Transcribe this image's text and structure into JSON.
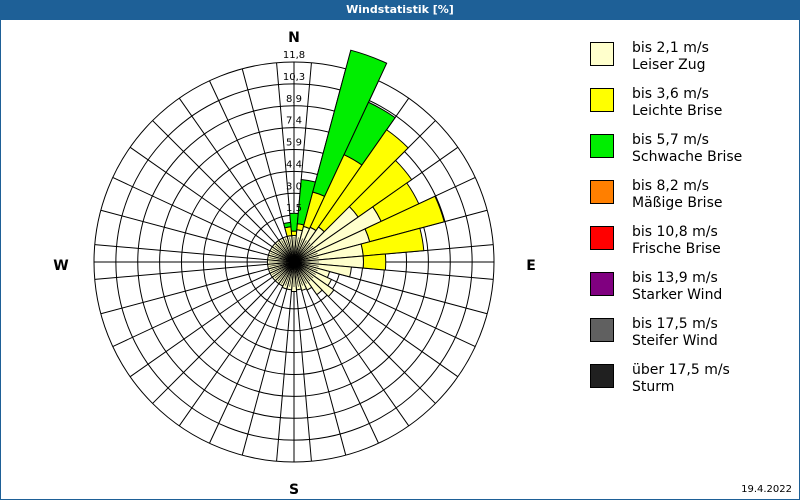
{
  "window": {
    "title": "Windstatistik [%]"
  },
  "footer": {
    "date": "19.4.2022"
  },
  "compass": {
    "n": "N",
    "e": "E",
    "s": "S",
    "w": "W"
  },
  "legend": [
    {
      "speed": "bis 2,1 m/s",
      "name": "Leiser Zug",
      "color": "#ffffcc"
    },
    {
      "speed": "bis 3,6 m/s",
      "name": "Leichte Brise",
      "color": "#ffff00"
    },
    {
      "speed": "bis 5,7 m/s",
      "name": "Schwache Brise",
      "color": "#00ee00"
    },
    {
      "speed": "bis 8,2 m/s",
      "name": "Mäßige Brise",
      "color": "#ff7f00"
    },
    {
      "speed": "bis 10,8 m/s",
      "name": "Frische Brise",
      "color": "#ff0000"
    },
    {
      "speed": "bis 13,9 m/s",
      "name": "Starker Wind",
      "color": "#800080"
    },
    {
      "speed": "bis 17,5 m/s",
      "name": "Steifer Wind",
      "color": "#606060"
    },
    {
      "speed": "über 17,5 m/s",
      "name": "Sturm",
      "color": "#202020"
    }
  ],
  "chart_data": {
    "type": "polar-stacked-bar (wind rose)",
    "title": "Windstatistik [%]",
    "unit": "%",
    "ring_labels": [
      "1,5",
      "3,0",
      "4,4",
      "5,9",
      "7,4",
      "8,9",
      "10,3",
      "11,8"
    ],
    "rmax": 11.8,
    "sector_width_deg": 10,
    "directions_deg": [
      0,
      10,
      20,
      30,
      40,
      50,
      60,
      70,
      80,
      90,
      100,
      110,
      120,
      130,
      140,
      150,
      160,
      170,
      180,
      190,
      200,
      210,
      220,
      230,
      240,
      250,
      260,
      270,
      280,
      290,
      300,
      310,
      320,
      330,
      340,
      350
    ],
    "series": [
      {
        "name": "bis 2,1 m/s Leiser Zug",
        "values": [
          0.1,
          0.5,
          0.8,
          0.9,
          1.2,
          3.6,
          4.8,
          3.6,
          3.0,
          3.0,
          2.2,
          0.8,
          1.1,
          1.6,
          1.0,
          0.4,
          0.3,
          0.2,
          0.3,
          0.2,
          0.2,
          0.1,
          0.1,
          0.1,
          0.1,
          0.1,
          0.1,
          0.1,
          0.1,
          0.1,
          0.1,
          0.1,
          0.1,
          0.1,
          0.1,
          0.1
        ]
      },
      {
        "name": "bis 3,6 m/s Leichte Brise",
        "values": [
          0.3,
          0.4,
          2.4,
          5.4,
          8.0,
          4.4,
          2.8,
          5.2,
          4.1,
          1.5,
          0,
          0,
          0,
          0,
          0,
          0,
          0,
          0,
          0,
          0,
          0,
          0,
          0,
          0,
          0,
          0,
          0,
          0,
          0,
          0,
          0,
          0,
          0,
          0,
          0,
          0.6
        ]
      },
      {
        "name": "bis 5,7 m/s Schwache Brise",
        "values": [
          1.2,
          3.0,
          9.9,
          3.9,
          0,
          0,
          0,
          0,
          0,
          0,
          0,
          0,
          0,
          0,
          0,
          0,
          0,
          0,
          0,
          0,
          0,
          0,
          0,
          0,
          0,
          0,
          0,
          0,
          0,
          0,
          0,
          0,
          0,
          0,
          0,
          0.3
        ]
      },
      {
        "name": "bis 8,2 m/s Mäßige Brise",
        "values": [
          0,
          0,
          0,
          0,
          0,
          0,
          0,
          0,
          0,
          0,
          0,
          0,
          0,
          0,
          0,
          0,
          0,
          0,
          0,
          0,
          0,
          0,
          0,
          0,
          0,
          0,
          0,
          0,
          0,
          0,
          0,
          0,
          0,
          0,
          0,
          0
        ]
      },
      {
        "name": "bis 10,8 m/s Frische Brise",
        "values": [
          0,
          0,
          0,
          0,
          0,
          0,
          0,
          0,
          0,
          0,
          0,
          0,
          0,
          0,
          0,
          0,
          0,
          0,
          0,
          0,
          0,
          0,
          0,
          0,
          0,
          0,
          0,
          0,
          0,
          0,
          0,
          0,
          0,
          0,
          0,
          0
        ]
      },
      {
        "name": "bis 13,9 m/s Starker Wind",
        "values": [
          0,
          0,
          0,
          0,
          0,
          0,
          0,
          0,
          0,
          0,
          0,
          0,
          0,
          0,
          0,
          0,
          0,
          0,
          0,
          0,
          0,
          0,
          0,
          0,
          0,
          0,
          0,
          0,
          0,
          0,
          0,
          0,
          0,
          0,
          0,
          0
        ]
      },
      {
        "name": "bis 17,5 m/s Steifer Wind",
        "values": [
          0,
          0,
          0,
          0,
          0,
          0,
          0,
          0,
          0,
          0,
          0,
          0,
          0,
          0,
          0,
          0,
          0,
          0,
          0,
          0,
          0,
          0,
          0,
          0,
          0,
          0,
          0,
          0,
          0,
          0,
          0,
          0,
          0,
          0,
          0,
          0
        ]
      },
      {
        "name": "über 17,5 m/s Sturm",
        "values": [
          0,
          0,
          0,
          0,
          0,
          0,
          0,
          0,
          0,
          0,
          0,
          0,
          0,
          0,
          0,
          0,
          0,
          0,
          0,
          0,
          0,
          0,
          0,
          0,
          0,
          0,
          0,
          0,
          0,
          0,
          0,
          0,
          0,
          0,
          0,
          0
        ]
      }
    ]
  }
}
